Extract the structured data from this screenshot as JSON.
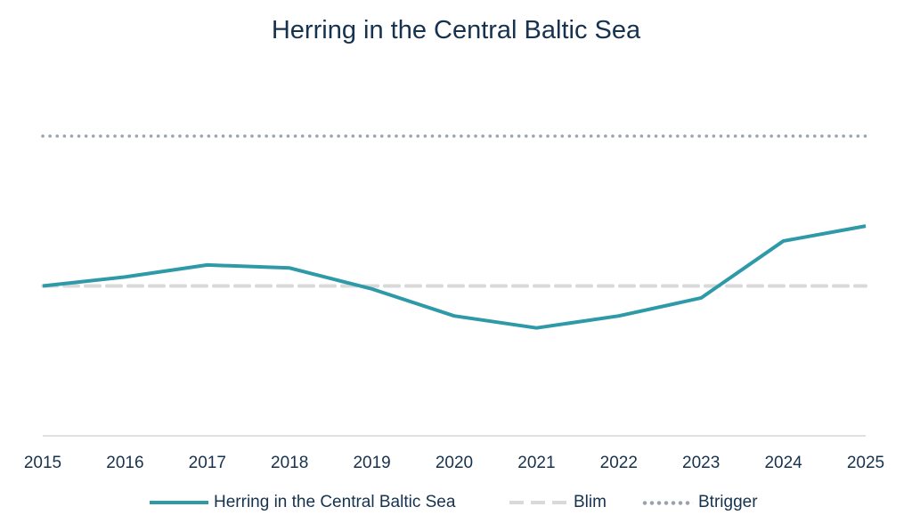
{
  "chart_data": {
    "type": "line",
    "title": "Herring in the Central Baltic Sea",
    "x": [
      "2015",
      "2016",
      "2017",
      "2018",
      "2019",
      "2020",
      "2021",
      "2022",
      "2023",
      "2024",
      "2025"
    ],
    "series": [
      {
        "name": "Herring in the Central Baltic Sea",
        "style": "solid",
        "color": "#2e9aa8",
        "values": [
          0.5,
          0.53,
          0.57,
          0.56,
          0.49,
          0.4,
          0.36,
          0.4,
          0.46,
          0.65,
          0.7
        ]
      },
      {
        "name": "Blim",
        "style": "dashed",
        "color": "#d9d9d9",
        "constant": 0.5
      },
      {
        "name": "Btrigger",
        "style": "dotted",
        "color": "#9aa3ad",
        "constant": 1.0
      }
    ],
    "ylim": [
      0,
      1.0
    ],
    "xlabel": "",
    "ylabel": "",
    "grid": false,
    "y_axis_labels": false,
    "legend_position": "bottom"
  }
}
